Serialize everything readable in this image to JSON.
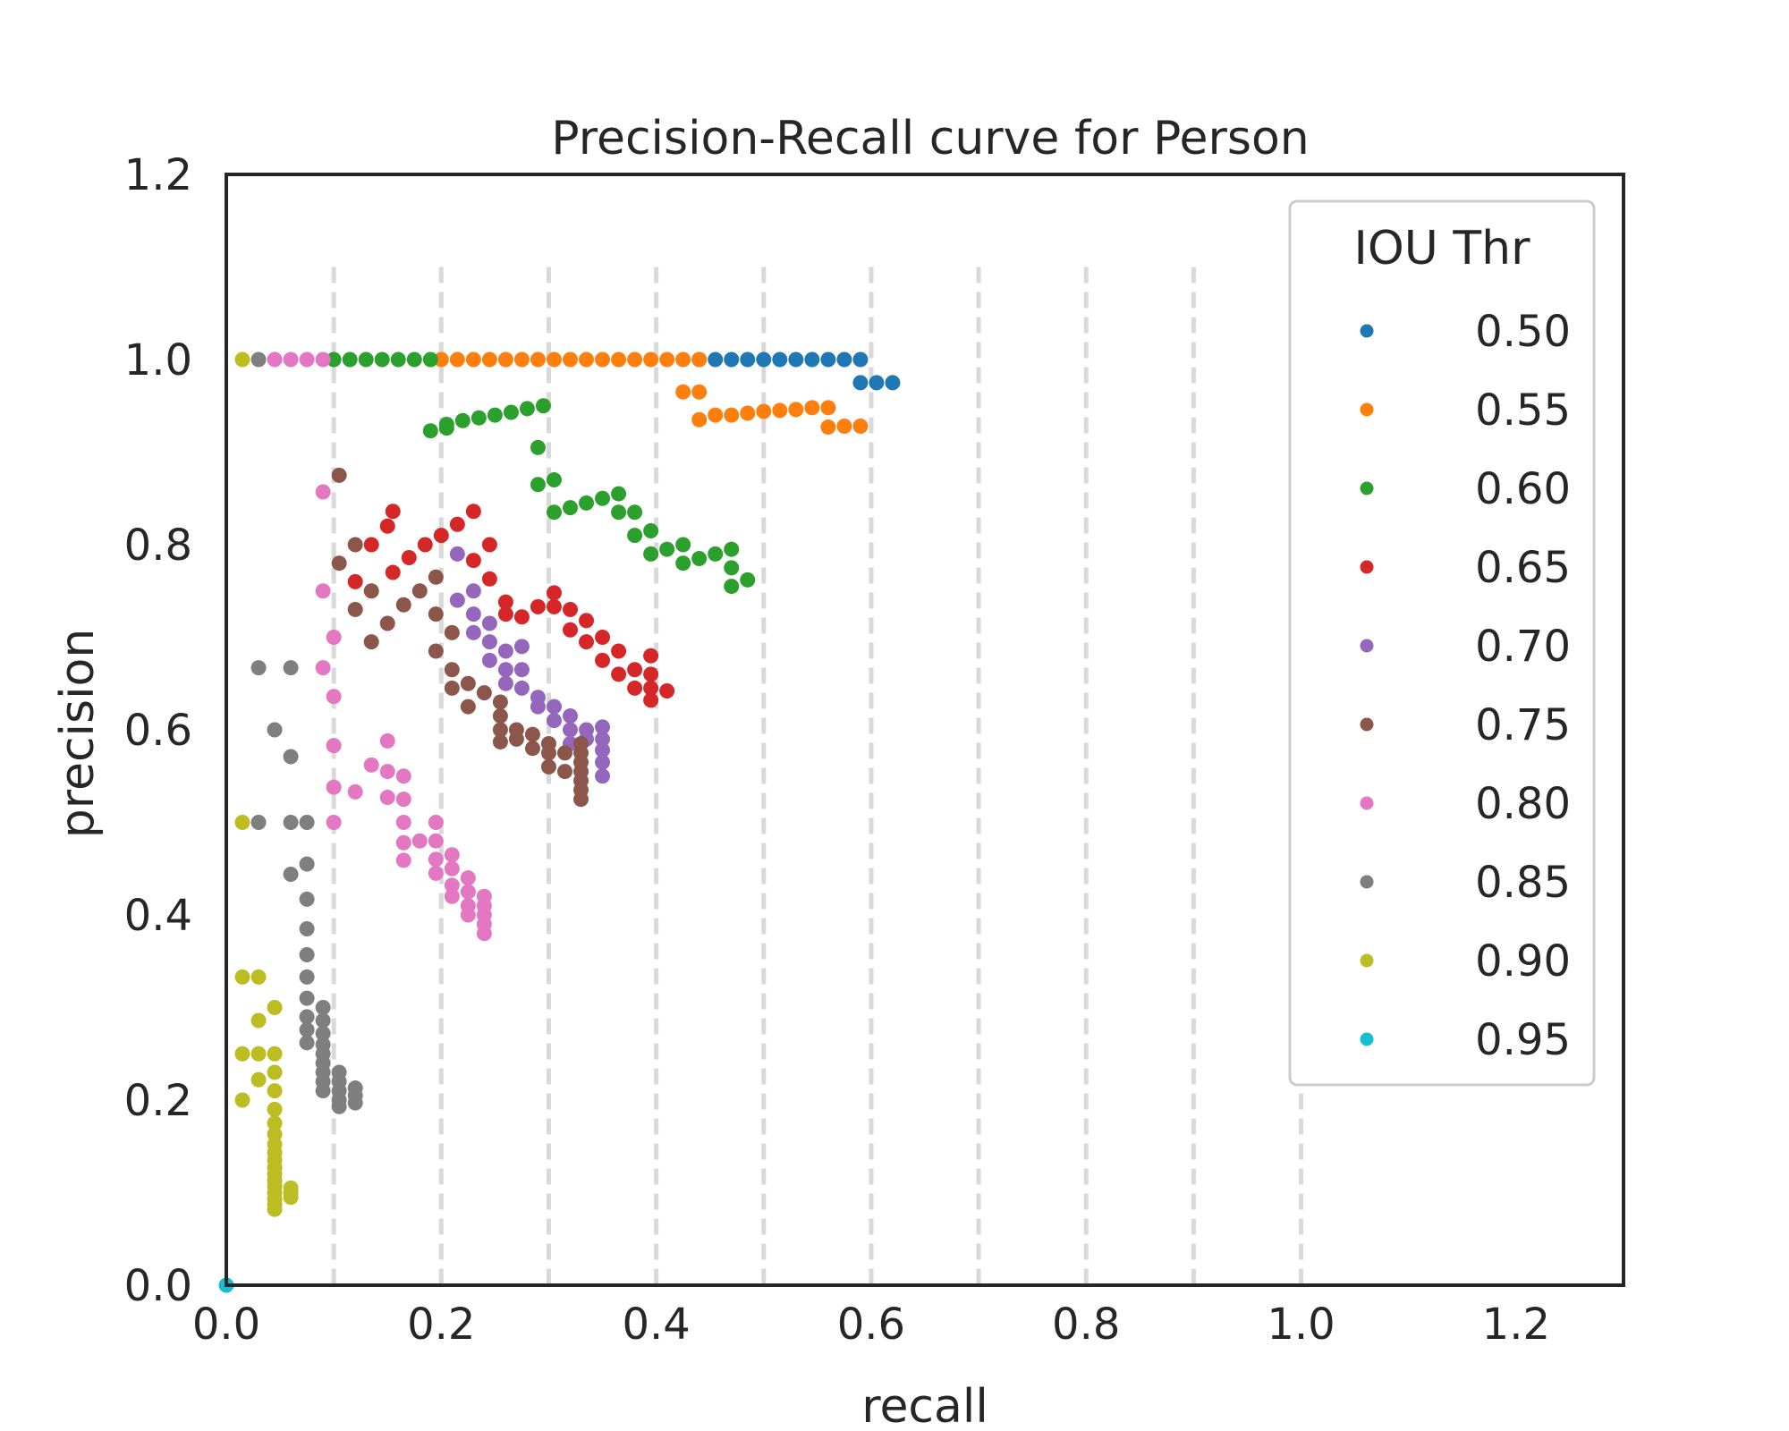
{
  "chart_data": {
    "type": "scatter",
    "title": "Precision-Recall curve for Person",
    "xlabel": "recall",
    "ylabel": "precision",
    "xlim": [
      0.0,
      1.3
    ],
    "ylim": [
      0.0,
      1.2
    ],
    "xticks": [
      "0.0",
      "0.2",
      "0.4",
      "0.6",
      "0.8",
      "1.0",
      "1.2"
    ],
    "yticks": [
      "0.0",
      "0.2",
      "0.4",
      "0.6",
      "0.8",
      "1.0",
      "1.2"
    ],
    "vlines": [
      0.1,
      0.2,
      0.3,
      0.4,
      0.5,
      0.6,
      0.7,
      0.8,
      0.9,
      1.0
    ],
    "grid": false,
    "legend": {
      "title": "IOU Thr",
      "placement": "top-right"
    },
    "series": [
      {
        "name": "0.50",
        "color": "#1f77b4",
        "points": [
          [
            0.44,
            1.0
          ],
          [
            0.455,
            1.0
          ],
          [
            0.47,
            1.0
          ],
          [
            0.485,
            1.0
          ],
          [
            0.5,
            1.0
          ],
          [
            0.515,
            1.0
          ],
          [
            0.53,
            1.0
          ],
          [
            0.545,
            1.0
          ],
          [
            0.56,
            1.0
          ],
          [
            0.575,
            1.0
          ],
          [
            0.59,
            1.0
          ],
          [
            0.59,
            0.975
          ],
          [
            0.605,
            0.975
          ],
          [
            0.62,
            0.975
          ]
        ]
      },
      {
        "name": "0.55",
        "color": "#ff7f0e",
        "points": [
          [
            0.2,
            1.0
          ],
          [
            0.215,
            1.0
          ],
          [
            0.23,
            1.0
          ],
          [
            0.245,
            1.0
          ],
          [
            0.26,
            1.0
          ],
          [
            0.275,
            1.0
          ],
          [
            0.29,
            1.0
          ],
          [
            0.305,
            1.0
          ],
          [
            0.32,
            1.0
          ],
          [
            0.335,
            1.0
          ],
          [
            0.35,
            1.0
          ],
          [
            0.365,
            1.0
          ],
          [
            0.38,
            1.0
          ],
          [
            0.395,
            1.0
          ],
          [
            0.41,
            1.0
          ],
          [
            0.425,
            1.0
          ],
          [
            0.44,
            1.0
          ],
          [
            0.425,
            0.965
          ],
          [
            0.44,
            0.965
          ],
          [
            0.44,
            0.935
          ],
          [
            0.455,
            0.94
          ],
          [
            0.47,
            0.94
          ],
          [
            0.485,
            0.942
          ],
          [
            0.5,
            0.944
          ],
          [
            0.515,
            0.945
          ],
          [
            0.53,
            0.946
          ],
          [
            0.545,
            0.948
          ],
          [
            0.56,
            0.948
          ],
          [
            0.56,
            0.927
          ],
          [
            0.575,
            0.928
          ],
          [
            0.59,
            0.928
          ]
        ]
      },
      {
        "name": "0.60",
        "color": "#2ca02c",
        "points": [
          [
            0.1,
            1.0
          ],
          [
            0.115,
            1.0
          ],
          [
            0.13,
            1.0
          ],
          [
            0.145,
            1.0
          ],
          [
            0.16,
            1.0
          ],
          [
            0.175,
            1.0
          ],
          [
            0.19,
            1.0
          ],
          [
            0.19,
            0.923
          ],
          [
            0.205,
            0.926
          ],
          [
            0.205,
            0.93
          ],
          [
            0.22,
            0.934
          ],
          [
            0.235,
            0.937
          ],
          [
            0.25,
            0.94
          ],
          [
            0.265,
            0.943
          ],
          [
            0.28,
            0.947
          ],
          [
            0.295,
            0.95
          ],
          [
            0.29,
            0.905
          ],
          [
            0.29,
            0.865
          ],
          [
            0.305,
            0.87
          ],
          [
            0.305,
            0.835
          ],
          [
            0.32,
            0.84
          ],
          [
            0.335,
            0.845
          ],
          [
            0.35,
            0.85
          ],
          [
            0.365,
            0.855
          ],
          [
            0.365,
            0.835
          ],
          [
            0.38,
            0.835
          ],
          [
            0.38,
            0.81
          ],
          [
            0.395,
            0.815
          ],
          [
            0.395,
            0.79
          ],
          [
            0.41,
            0.795
          ],
          [
            0.425,
            0.8
          ],
          [
            0.425,
            0.78
          ],
          [
            0.44,
            0.785
          ],
          [
            0.455,
            0.79
          ],
          [
            0.47,
            0.795
          ],
          [
            0.47,
            0.775
          ],
          [
            0.47,
            0.755
          ],
          [
            0.485,
            0.762
          ]
        ]
      },
      {
        "name": "0.65",
        "color": "#d62728",
        "points": [
          [
            0.12,
            0.76
          ],
          [
            0.135,
            0.8
          ],
          [
            0.15,
            0.82
          ],
          [
            0.155,
            0.836
          ],
          [
            0.155,
            0.77
          ],
          [
            0.17,
            0.786
          ],
          [
            0.185,
            0.8
          ],
          [
            0.2,
            0.81
          ],
          [
            0.215,
            0.822
          ],
          [
            0.23,
            0.836
          ],
          [
            0.23,
            0.783
          ],
          [
            0.245,
            0.8
          ],
          [
            0.245,
            0.763
          ],
          [
            0.26,
            0.738
          ],
          [
            0.26,
            0.725
          ],
          [
            0.275,
            0.722
          ],
          [
            0.29,
            0.733
          ],
          [
            0.305,
            0.748
          ],
          [
            0.305,
            0.733
          ],
          [
            0.32,
            0.73
          ],
          [
            0.32,
            0.708
          ],
          [
            0.335,
            0.718
          ],
          [
            0.335,
            0.695
          ],
          [
            0.35,
            0.7
          ],
          [
            0.35,
            0.675
          ],
          [
            0.365,
            0.685
          ],
          [
            0.365,
            0.66
          ],
          [
            0.38,
            0.665
          ],
          [
            0.38,
            0.645
          ],
          [
            0.395,
            0.68
          ],
          [
            0.395,
            0.66
          ],
          [
            0.395,
            0.645
          ],
          [
            0.395,
            0.632
          ],
          [
            0.41,
            0.642
          ]
        ]
      },
      {
        "name": "0.70",
        "color": "#9467bd",
        "points": [
          [
            0.215,
            0.79
          ],
          [
            0.215,
            0.74
          ],
          [
            0.23,
            0.75
          ],
          [
            0.23,
            0.725
          ],
          [
            0.23,
            0.705
          ],
          [
            0.245,
            0.715
          ],
          [
            0.245,
            0.695
          ],
          [
            0.245,
            0.675
          ],
          [
            0.26,
            0.685
          ],
          [
            0.26,
            0.665
          ],
          [
            0.26,
            0.65
          ],
          [
            0.275,
            0.69
          ],
          [
            0.275,
            0.665
          ],
          [
            0.275,
            0.645
          ],
          [
            0.29,
            0.625
          ],
          [
            0.29,
            0.635
          ],
          [
            0.305,
            0.625
          ],
          [
            0.305,
            0.61
          ],
          [
            0.32,
            0.615
          ],
          [
            0.32,
            0.6
          ],
          [
            0.32,
            0.585
          ],
          [
            0.335,
            0.6
          ],
          [
            0.335,
            0.59
          ],
          [
            0.35,
            0.603
          ],
          [
            0.35,
            0.59
          ],
          [
            0.35,
            0.578
          ],
          [
            0.35,
            0.565
          ],
          [
            0.35,
            0.55
          ]
        ]
      },
      {
        "name": "0.75",
        "color": "#8c564b",
        "points": [
          [
            0.105,
            0.875
          ],
          [
            0.105,
            0.78
          ],
          [
            0.12,
            0.8
          ],
          [
            0.12,
            0.73
          ],
          [
            0.135,
            0.75
          ],
          [
            0.135,
            0.695
          ],
          [
            0.15,
            0.715
          ],
          [
            0.165,
            0.735
          ],
          [
            0.18,
            0.75
          ],
          [
            0.195,
            0.765
          ],
          [
            0.195,
            0.725
          ],
          [
            0.195,
            0.685
          ],
          [
            0.21,
            0.705
          ],
          [
            0.21,
            0.665
          ],
          [
            0.21,
            0.645
          ],
          [
            0.225,
            0.625
          ],
          [
            0.225,
            0.65
          ],
          [
            0.24,
            0.64
          ],
          [
            0.255,
            0.63
          ],
          [
            0.255,
            0.615
          ],
          [
            0.255,
            0.6
          ],
          [
            0.255,
            0.587
          ],
          [
            0.27,
            0.6
          ],
          [
            0.27,
            0.59
          ],
          [
            0.285,
            0.595
          ],
          [
            0.285,
            0.58
          ],
          [
            0.3,
            0.585
          ],
          [
            0.3,
            0.575
          ],
          [
            0.3,
            0.56
          ],
          [
            0.315,
            0.575
          ],
          [
            0.315,
            0.555
          ],
          [
            0.33,
            0.585
          ],
          [
            0.33,
            0.575
          ],
          [
            0.33,
            0.565
          ],
          [
            0.33,
            0.555
          ],
          [
            0.33,
            0.545
          ],
          [
            0.33,
            0.535
          ],
          [
            0.33,
            0.525
          ]
        ]
      },
      {
        "name": "0.80",
        "color": "#e377c2",
        "points": [
          [
            0.045,
            1.0
          ],
          [
            0.06,
            1.0
          ],
          [
            0.075,
            1.0
          ],
          [
            0.09,
            1.0
          ],
          [
            0.09,
            0.857
          ],
          [
            0.09,
            0.75
          ],
          [
            0.1,
            0.7
          ],
          [
            0.09,
            0.667
          ],
          [
            0.1,
            0.636
          ],
          [
            0.1,
            0.583
          ],
          [
            0.1,
            0.538
          ],
          [
            0.1,
            0.5
          ],
          [
            0.12,
            0.533
          ],
          [
            0.135,
            0.562
          ],
          [
            0.15,
            0.588
          ],
          [
            0.15,
            0.555
          ],
          [
            0.15,
            0.527
          ],
          [
            0.165,
            0.55
          ],
          [
            0.165,
            0.525
          ],
          [
            0.165,
            0.5
          ],
          [
            0.165,
            0.478
          ],
          [
            0.165,
            0.459
          ],
          [
            0.18,
            0.48
          ],
          [
            0.195,
            0.5
          ],
          [
            0.195,
            0.48
          ],
          [
            0.195,
            0.46
          ],
          [
            0.195,
            0.445
          ],
          [
            0.21,
            0.465
          ],
          [
            0.21,
            0.45
          ],
          [
            0.21,
            0.432
          ],
          [
            0.21,
            0.42
          ],
          [
            0.225,
            0.44
          ],
          [
            0.225,
            0.425
          ],
          [
            0.225,
            0.41
          ],
          [
            0.225,
            0.4
          ],
          [
            0.24,
            0.42
          ],
          [
            0.24,
            0.41
          ],
          [
            0.24,
            0.4
          ],
          [
            0.24,
            0.39
          ],
          [
            0.24,
            0.38
          ]
        ]
      },
      {
        "name": "0.85",
        "color": "#7f7f7f",
        "points": [
          [
            0.03,
            1.0
          ],
          [
            0.03,
            0.667
          ],
          [
            0.06,
            0.667
          ],
          [
            0.03,
            0.5
          ],
          [
            0.045,
            0.6
          ],
          [
            0.06,
            0.571
          ],
          [
            0.06,
            0.5
          ],
          [
            0.075,
            0.5
          ],
          [
            0.06,
            0.444
          ],
          [
            0.075,
            0.455
          ],
          [
            0.075,
            0.417
          ],
          [
            0.075,
            0.385
          ],
          [
            0.075,
            0.357
          ],
          [
            0.075,
            0.333
          ],
          [
            0.075,
            0.31
          ],
          [
            0.075,
            0.29
          ],
          [
            0.075,
            0.276
          ],
          [
            0.075,
            0.262
          ],
          [
            0.09,
            0.3
          ],
          [
            0.09,
            0.286
          ],
          [
            0.09,
            0.272
          ],
          [
            0.09,
            0.26
          ],
          [
            0.09,
            0.25
          ],
          [
            0.09,
            0.24
          ],
          [
            0.09,
            0.23
          ],
          [
            0.09,
            0.22
          ],
          [
            0.09,
            0.21
          ],
          [
            0.105,
            0.23
          ],
          [
            0.105,
            0.22
          ],
          [
            0.105,
            0.21
          ],
          [
            0.105,
            0.2
          ],
          [
            0.105,
            0.193
          ],
          [
            0.12,
            0.213
          ],
          [
            0.12,
            0.205
          ],
          [
            0.12,
            0.197
          ]
        ]
      },
      {
        "name": "0.90",
        "color": "#bcbd22",
        "points": [
          [
            0.015,
            1.0
          ],
          [
            0.015,
            0.5
          ],
          [
            0.015,
            0.333
          ],
          [
            0.03,
            0.333
          ],
          [
            0.03,
            0.286
          ],
          [
            0.045,
            0.3
          ],
          [
            0.015,
            0.25
          ],
          [
            0.03,
            0.25
          ],
          [
            0.045,
            0.25
          ],
          [
            0.045,
            0.23
          ],
          [
            0.03,
            0.222
          ],
          [
            0.045,
            0.21
          ],
          [
            0.015,
            0.2
          ],
          [
            0.045,
            0.19
          ],
          [
            0.045,
            0.175
          ],
          [
            0.045,
            0.163
          ],
          [
            0.045,
            0.152
          ],
          [
            0.045,
            0.143
          ],
          [
            0.045,
            0.135
          ],
          [
            0.045,
            0.127
          ],
          [
            0.045,
            0.12
          ],
          [
            0.045,
            0.113
          ],
          [
            0.045,
            0.107
          ],
          [
            0.045,
            0.1
          ],
          [
            0.045,
            0.093
          ],
          [
            0.045,
            0.087
          ],
          [
            0.045,
            0.082
          ],
          [
            0.06,
            0.105
          ],
          [
            0.06,
            0.1
          ],
          [
            0.06,
            0.095
          ]
        ]
      },
      {
        "name": "0.95",
        "color": "#17becf",
        "points": [
          [
            0.0,
            0.0
          ]
        ]
      }
    ]
  }
}
